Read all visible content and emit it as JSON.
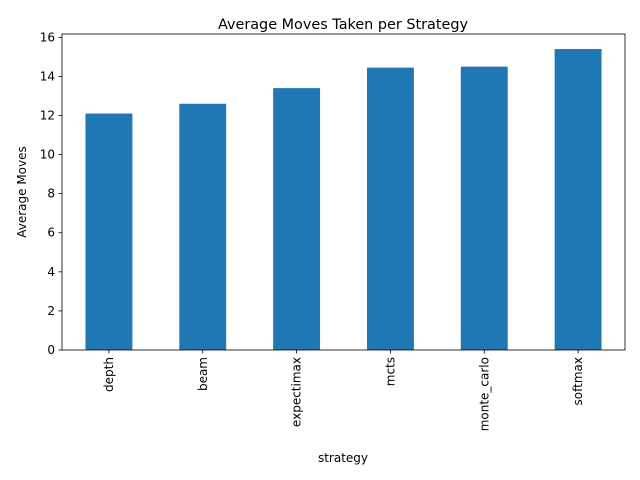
{
  "chart_data": {
    "type": "bar",
    "title": "Average Moves Taken per Strategy",
    "xlabel": "strategy",
    "ylabel": "Average Moves",
    "categories": [
      "depth",
      "beam",
      "expectimax",
      "mcts",
      "monte_carlo",
      "softmax"
    ],
    "values": [
      12.1,
      12.6,
      13.4,
      14.45,
      14.5,
      15.4
    ],
    "ylim": [
      0,
      16.17
    ],
    "yticks": [
      0,
      2,
      4,
      6,
      8,
      10,
      12,
      14,
      16
    ],
    "grid": false,
    "legend": "none",
    "bar_color": "#1f77b4"
  }
}
